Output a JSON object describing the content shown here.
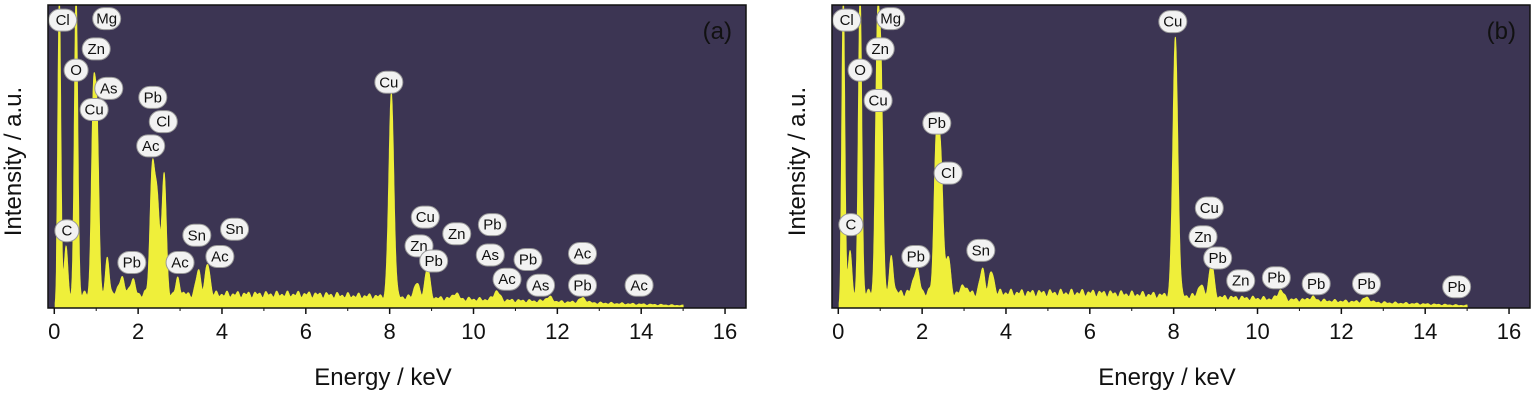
{
  "chart_data": [
    {
      "type": "area",
      "panel_label": "(a)",
      "xlabel": "Energy / keV",
      "ylabel": "Intensity / a.u.",
      "xlim": [
        -0.15,
        16.5
      ],
      "ylim": [
        0,
        100
      ],
      "x_ticks": [
        0,
        2,
        4,
        6,
        8,
        10,
        12,
        14,
        16
      ],
      "grid": false,
      "colors": {
        "plot_background": "#3c3553",
        "spectrum": "#efef3a",
        "label_fill": "#f2f2f2"
      },
      "peaks": [
        {
          "x": 0.12,
          "y": 100,
          "w": 0.035
        },
        {
          "x": 0.28,
          "y": 16,
          "w": 0.04
        },
        {
          "x": 0.52,
          "y": 100,
          "w": 0.04
        },
        {
          "x": 0.93,
          "y": 62,
          "w": 0.045
        },
        {
          "x": 1.02,
          "y": 55,
          "w": 0.045
        },
        {
          "x": 1.27,
          "y": 12,
          "w": 0.045
        },
        {
          "x": 1.6,
          "y": 6,
          "w": 0.06
        },
        {
          "x": 1.86,
          "y": 5,
          "w": 0.06
        },
        {
          "x": 2.34,
          "y": 42,
          "w": 0.055
        },
        {
          "x": 2.46,
          "y": 30,
          "w": 0.055
        },
        {
          "x": 2.62,
          "y": 40,
          "w": 0.05
        },
        {
          "x": 2.95,
          "y": 5,
          "w": 0.05
        },
        {
          "x": 3.44,
          "y": 8,
          "w": 0.055
        },
        {
          "x": 3.66,
          "y": 10,
          "w": 0.055
        },
        {
          "x": 8.04,
          "y": 67,
          "w": 0.06
        },
        {
          "x": 8.64,
          "y": 5,
          "w": 0.06
        },
        {
          "x": 8.9,
          "y": 10,
          "w": 0.06
        },
        {
          "x": 9.57,
          "y": 2,
          "w": 0.06
        },
        {
          "x": 10.55,
          "y": 3,
          "w": 0.07
        },
        {
          "x": 11.8,
          "y": 1.5,
          "w": 0.08
        },
        {
          "x": 12.6,
          "y": 1.5,
          "w": 0.08
        }
      ],
      "background": {
        "start": 4.5,
        "mid": 4.5,
        "end": 0.8,
        "x_end": 15.0
      },
      "labels": [
        {
          "text": "Cl",
          "x": 0.2,
          "y": 95
        },
        {
          "text": "Mg",
          "x": 1.25,
          "y": 95.5
        },
        {
          "text": "Zn",
          "x": 1.0,
          "y": 85.5
        },
        {
          "text": "O",
          "x": 0.52,
          "y": 78.5
        },
        {
          "text": "As",
          "x": 1.3,
          "y": 72.5
        },
        {
          "text": "Pb",
          "x": 2.35,
          "y": 69.5
        },
        {
          "text": "Cu",
          "x": 0.95,
          "y": 65.5
        },
        {
          "text": "Cl",
          "x": 2.6,
          "y": 61.5
        },
        {
          "text": "Ac",
          "x": 2.3,
          "y": 53.5
        },
        {
          "text": "Cu",
          "x": 7.98,
          "y": 74.5
        },
        {
          "text": "C",
          "x": 0.3,
          "y": 25.5
        },
        {
          "text": "Sn",
          "x": 3.4,
          "y": 24
        },
        {
          "text": "Sn",
          "x": 4.3,
          "y": 26
        },
        {
          "text": "Pb",
          "x": 1.85,
          "y": 15
        },
        {
          "text": "Ac",
          "x": 3.0,
          "y": 15
        },
        {
          "text": "Ac",
          "x": 3.95,
          "y": 17
        },
        {
          "text": "Cu",
          "x": 8.85,
          "y": 30
        },
        {
          "text": "Zn",
          "x": 9.6,
          "y": 24.5
        },
        {
          "text": "Pb",
          "x": 10.45,
          "y": 27.5
        },
        {
          "text": "Zn",
          "x": 8.7,
          "y": 20.5
        },
        {
          "text": "Pb",
          "x": 9.05,
          "y": 15.5
        },
        {
          "text": "As",
          "x": 10.4,
          "y": 17.5
        },
        {
          "text": "Pb",
          "x": 11.3,
          "y": 16
        },
        {
          "text": "Ac",
          "x": 12.6,
          "y": 18
        },
        {
          "text": "Ac",
          "x": 10.8,
          "y": 9.5
        },
        {
          "text": "As",
          "x": 11.6,
          "y": 7.5
        },
        {
          "text": "Pb",
          "x": 12.6,
          "y": 7.5
        },
        {
          "text": "Ac",
          "x": 13.95,
          "y": 7.5
        }
      ]
    },
    {
      "type": "area",
      "panel_label": "(b)",
      "xlabel": "Energy / keV",
      "ylabel": "Intensity / a.u.",
      "xlim": [
        -0.15,
        16.5
      ],
      "ylim": [
        0,
        100
      ],
      "x_ticks": [
        0,
        2,
        4,
        6,
        8,
        10,
        12,
        14,
        16
      ],
      "grid": false,
      "colors": {
        "plot_background": "#3c3553",
        "spectrum": "#efef3a",
        "label_fill": "#f2f2f2"
      },
      "peaks": [
        {
          "x": 0.12,
          "y": 100,
          "w": 0.035
        },
        {
          "x": 0.28,
          "y": 14,
          "w": 0.04
        },
        {
          "x": 0.52,
          "y": 100,
          "w": 0.04
        },
        {
          "x": 0.93,
          "y": 82,
          "w": 0.045
        },
        {
          "x": 1.02,
          "y": 70,
          "w": 0.045
        },
        {
          "x": 1.27,
          "y": 12,
          "w": 0.045
        },
        {
          "x": 1.86,
          "y": 8,
          "w": 0.07
        },
        {
          "x": 2.34,
          "y": 50,
          "w": 0.055
        },
        {
          "x": 2.45,
          "y": 40,
          "w": 0.055
        },
        {
          "x": 2.62,
          "y": 12,
          "w": 0.05
        },
        {
          "x": 3.0,
          "y": 3,
          "w": 0.05
        },
        {
          "x": 3.44,
          "y": 8,
          "w": 0.055
        },
        {
          "x": 3.66,
          "y": 7,
          "w": 0.055
        },
        {
          "x": 8.04,
          "y": 85,
          "w": 0.06
        },
        {
          "x": 8.64,
          "y": 4,
          "w": 0.06
        },
        {
          "x": 8.9,
          "y": 11,
          "w": 0.06
        },
        {
          "x": 10.55,
          "y": 3,
          "w": 0.07
        },
        {
          "x": 11.3,
          "y": 1,
          "w": 0.08
        },
        {
          "x": 12.6,
          "y": 1.5,
          "w": 0.08
        }
      ],
      "background": {
        "start": 5,
        "mid": 5,
        "end": 0.8,
        "x_end": 15.0
      },
      "labels": [
        {
          "text": "Cl",
          "x": 0.2,
          "y": 95
        },
        {
          "text": "Mg",
          "x": 1.25,
          "y": 95.5
        },
        {
          "text": "Zn",
          "x": 1.0,
          "y": 85.5
        },
        {
          "text": "O",
          "x": 0.52,
          "y": 78.5
        },
        {
          "text": "Cu",
          "x": 0.95,
          "y": 68.5
        },
        {
          "text": "Cu",
          "x": 7.98,
          "y": 94.5
        },
        {
          "text": "Pb",
          "x": 2.35,
          "y": 61
        },
        {
          "text": "Cl",
          "x": 2.62,
          "y": 44.5
        },
        {
          "text": "C",
          "x": 0.3,
          "y": 27.5
        },
        {
          "text": "Sn",
          "x": 3.4,
          "y": 19
        },
        {
          "text": "Pb",
          "x": 1.85,
          "y": 17
        },
        {
          "text": "Cu",
          "x": 8.85,
          "y": 33
        },
        {
          "text": "Zn",
          "x": 8.7,
          "y": 23.5
        },
        {
          "text": "Pb",
          "x": 9.05,
          "y": 16.5
        },
        {
          "text": "Zn",
          "x": 9.6,
          "y": 9
        },
        {
          "text": "Pb",
          "x": 10.45,
          "y": 10
        },
        {
          "text": "Pb",
          "x": 11.4,
          "y": 8
        },
        {
          "text": "Pb",
          "x": 12.6,
          "y": 8
        },
        {
          "text": "Pb",
          "x": 14.75,
          "y": 7
        }
      ]
    }
  ]
}
